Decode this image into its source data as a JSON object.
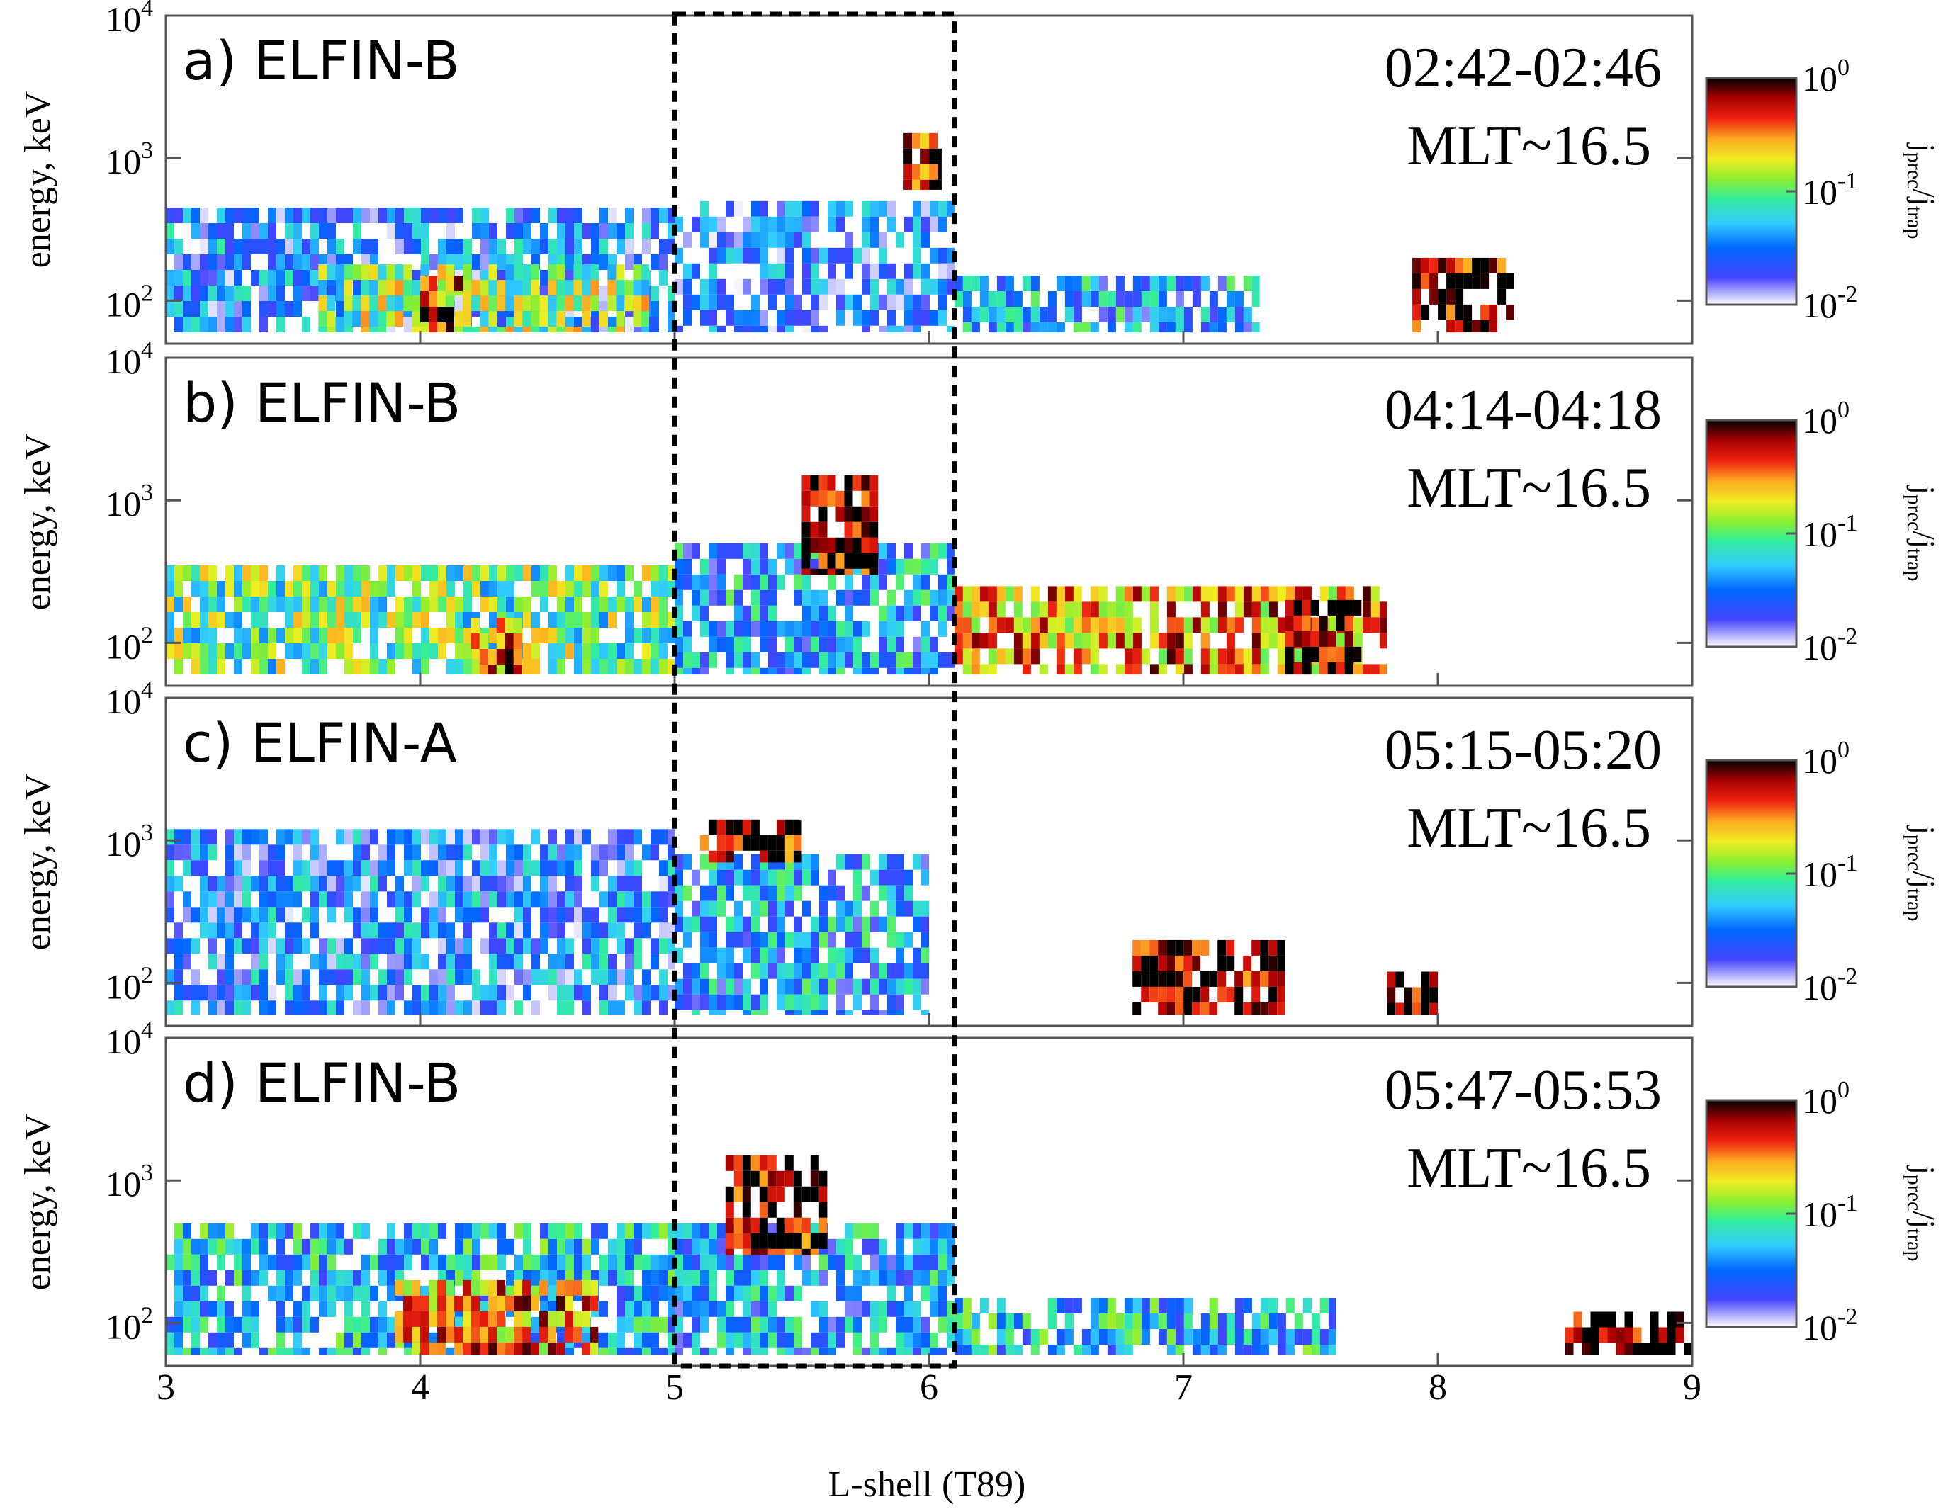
{
  "chart_data": {
    "type": "heatmap",
    "xlabel": "L-shell (T89)",
    "xlim": [
      3,
      9
    ],
    "x_ticks": [
      "3",
      "4",
      "5",
      "6",
      "7",
      "8",
      "9"
    ],
    "ylabel": "energy, keV",
    "y_scale": "log",
    "ylim": [
      50,
      10000
    ],
    "y_ticks": [
      {
        "value": 10000,
        "base": "10",
        "exp": "4"
      },
      {
        "value": 1000,
        "base": "10",
        "exp": "3"
      },
      {
        "value": 100,
        "base": "10",
        "exp": "2"
      }
    ],
    "colorbar": {
      "label_main": "j",
      "label_sub_num": "prec",
      "label_sub_den": "trap",
      "scale": "log",
      "range": [
        0.01,
        1
      ],
      "ticks": [
        {
          "value": 1,
          "base": "10",
          "exp": "0"
        },
        {
          "value": 0.1,
          "base": "10",
          "exp": "-1"
        },
        {
          "value": 0.01,
          "base": "10",
          "exp": "-2"
        }
      ]
    },
    "highlight_box": {
      "l_min": 5.0,
      "l_max": 6.1,
      "style": "dashed"
    },
    "panels": [
      {
        "label": "a) ELFIN-B",
        "time": "02:42-02:46",
        "mlt": "MLT~16.5",
        "features": [
          {
            "l": [
              3.0,
              5.0
            ],
            "e": [
              60,
              450
            ],
            "level": 0.03
          },
          {
            "l": [
              3.6,
              4.9
            ],
            "e": [
              60,
              180
            ],
            "level": 0.12
          },
          {
            "l": [
              4.0,
              4.2
            ],
            "e": [
              60,
              150
            ],
            "level": 0.45
          },
          {
            "l": [
              5.0,
              6.1
            ],
            "e": [
              60,
              500
            ],
            "level": 0.025
          },
          {
            "l": [
              5.9,
              6.05
            ],
            "e": [
              600,
              1500
            ],
            "level": 0.6
          },
          {
            "l": [
              6.1,
              7.3
            ],
            "e": [
              60,
              150
            ],
            "level": 0.04
          },
          {
            "l": [
              7.9,
              8.3
            ],
            "e": [
              60,
              200
            ],
            "level": 0.7
          }
        ]
      },
      {
        "label": "b) ELFIN-B",
        "time": "04:14-04:18",
        "mlt": "MLT~16.5",
        "features": [
          {
            "l": [
              3.0,
              5.0
            ],
            "e": [
              60,
              350
            ],
            "level": 0.1
          },
          {
            "l": [
              4.2,
              4.4
            ],
            "e": [
              60,
              150
            ],
            "level": 0.4
          },
          {
            "l": [
              5.0,
              6.1
            ],
            "e": [
              60,
              500
            ],
            "level": 0.04
          },
          {
            "l": [
              5.5,
              5.8
            ],
            "e": [
              300,
              1500
            ],
            "level": 0.8
          },
          {
            "l": [
              6.1,
              7.8
            ],
            "e": [
              60,
              250
            ],
            "level": 0.3
          },
          {
            "l": [
              7.4,
              7.7
            ],
            "e": [
              60,
              200
            ],
            "level": 0.9
          }
        ]
      },
      {
        "label": "c) ELFIN-A",
        "time": "05:15-05:20",
        "mlt": "MLT~16.5",
        "features": [
          {
            "l": [
              3.0,
              5.0
            ],
            "e": [
              60,
              1200
            ],
            "level": 0.03
          },
          {
            "l": [
              5.0,
              6.0
            ],
            "e": [
              60,
              800
            ],
            "level": 0.04
          },
          {
            "l": [
              5.1,
              5.5
            ],
            "e": [
              700,
              1400
            ],
            "level": 0.7
          },
          {
            "l": [
              6.8,
              7.4
            ],
            "e": [
              60,
              200
            ],
            "level": 0.8
          },
          {
            "l": [
              7.8,
              8.0
            ],
            "e": [
              60,
              120
            ],
            "level": 0.9
          }
        ]
      },
      {
        "label": "d) ELFIN-B",
        "time": "05:47-05:53",
        "mlt": "MLT~16.5",
        "features": [
          {
            "l": [
              3.0,
              5.0
            ],
            "e": [
              60,
              500
            ],
            "level": 0.05
          },
          {
            "l": [
              3.9,
              4.7
            ],
            "e": [
              60,
              200
            ],
            "level": 0.3
          },
          {
            "l": [
              5.0,
              6.1
            ],
            "e": [
              60,
              500
            ],
            "level": 0.04
          },
          {
            "l": [
              5.2,
              5.6
            ],
            "e": [
              300,
              1500
            ],
            "level": 0.7
          },
          {
            "l": [
              6.1,
              7.6
            ],
            "e": [
              60,
              150
            ],
            "level": 0.05
          },
          {
            "l": [
              8.5,
              9.0
            ],
            "e": [
              60,
              120
            ],
            "level": 0.9
          }
        ]
      }
    ]
  }
}
